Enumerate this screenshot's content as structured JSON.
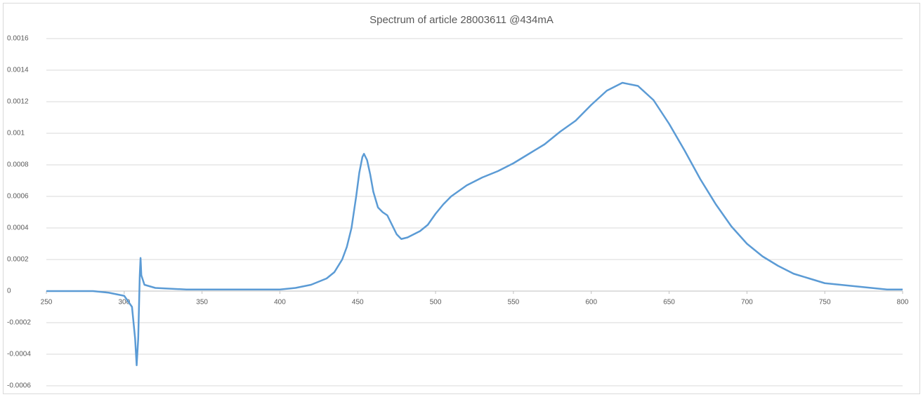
{
  "chart_data": {
    "type": "line",
    "title": "Spectrum of article 28003611   @434mA",
    "x": [
      250,
      280,
      290,
      300,
      305,
      307,
      308,
      309,
      310,
      310.5,
      311,
      313,
      320,
      340,
      400,
      410,
      420,
      430,
      435,
      440,
      443,
      446,
      449,
      451,
      453,
      454,
      456,
      458,
      460,
      463,
      466,
      469,
      472,
      475,
      478,
      482,
      490,
      495,
      500,
      505,
      510,
      520,
      530,
      540,
      550,
      560,
      570,
      580,
      590,
      600,
      610,
      620,
      630,
      640,
      650,
      660,
      670,
      680,
      690,
      700,
      710,
      720,
      730,
      740,
      750,
      760,
      770,
      780,
      790,
      800
    ],
    "values": [
      0,
      0,
      -1e-05,
      -3e-05,
      -0.0001,
      -0.0003,
      -0.00047,
      -0.0003,
      0.0001,
      0.00021,
      0.0001,
      4e-05,
      2e-05,
      1e-05,
      1e-05,
      2e-05,
      4e-05,
      8e-05,
      0.00012,
      0.0002,
      0.00028,
      0.0004,
      0.0006,
      0.00075,
      0.00085,
      0.00087,
      0.00083,
      0.00074,
      0.00063,
      0.00053,
      0.0005,
      0.00048,
      0.00042,
      0.00036,
      0.00033,
      0.00034,
      0.00038,
      0.00042,
      0.00049,
      0.00055,
      0.0006,
      0.00067,
      0.00072,
      0.00076,
      0.00081,
      0.00087,
      0.00093,
      0.00101,
      0.00108,
      0.00118,
      0.00127,
      0.00132,
      0.0013,
      0.00121,
      0.00106,
      0.00089,
      0.00071,
      0.00055,
      0.00041,
      0.0003,
      0.00022,
      0.00016,
      0.00011,
      8e-05,
      5e-05,
      4e-05,
      3e-05,
      2e-05,
      1e-05,
      1e-05
    ],
    "color": "#5b9bd5",
    "xlim": [
      250,
      800
    ],
    "xticks": [
      250,
      300,
      350,
      400,
      450,
      500,
      550,
      600,
      650,
      700,
      750,
      800
    ],
    "ylim": [
      -0.0006,
      0.0016
    ],
    "yticks": [
      0.0016,
      0.0014,
      0.0012,
      0.001,
      0.0008,
      0.0006,
      0.0004,
      0.0002,
      0,
      -0.0002,
      -0.0004,
      -0.0006
    ],
    "grid": true
  }
}
